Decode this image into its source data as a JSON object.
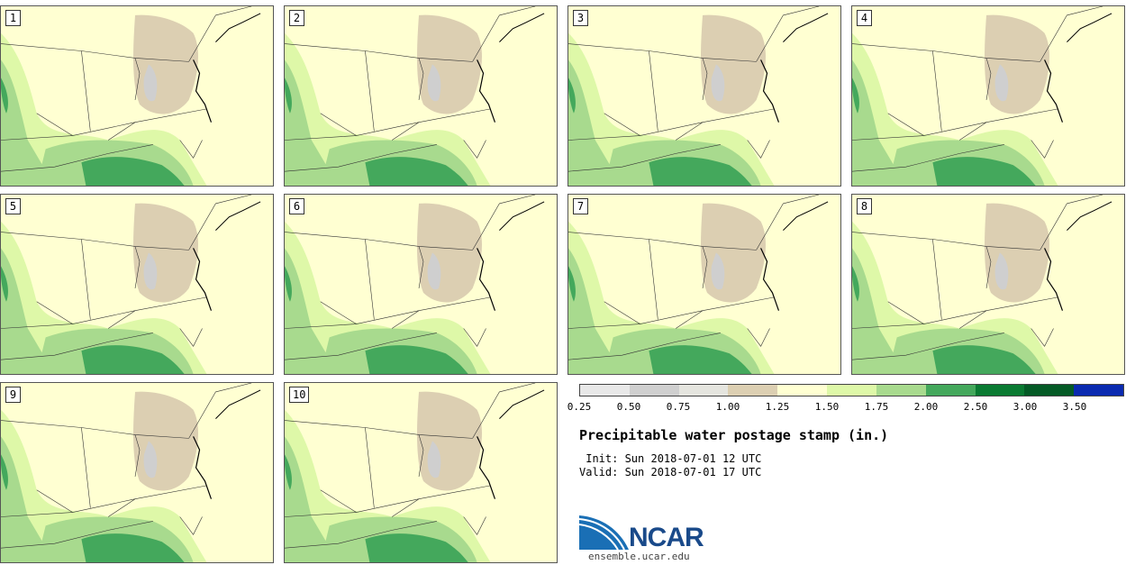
{
  "panels": [
    {
      "label": "1"
    },
    {
      "label": "2"
    },
    {
      "label": "3"
    },
    {
      "label": "4"
    },
    {
      "label": "5"
    },
    {
      "label": "6"
    },
    {
      "label": "7"
    },
    {
      "label": "8"
    },
    {
      "label": "9"
    },
    {
      "label": "10"
    }
  ],
  "colorbar": {
    "colors": [
      "#e8e8e8",
      "#cfcfcf",
      "#e5e5df",
      "#dccfb2",
      "#ffffd2",
      "#def8a8",
      "#a8da8e",
      "#44a85c",
      "#0a7a32",
      "#045a26",
      "#0a2ab0"
    ],
    "ticks": [
      "0.25",
      "0.50",
      "0.75",
      "1.00",
      "1.25",
      "1.50",
      "1.75",
      "2.00",
      "2.50",
      "3.00",
      "3.50"
    ]
  },
  "title": "Precipitable water postage stamp (in.)",
  "init": " Init: Sun 2018-07-01 12 UTC",
  "valid": "Valid: Sun 2018-07-01 17 UTC",
  "logo": {
    "name": "NCAR",
    "url": "ensemble.ucar.edu"
  }
}
